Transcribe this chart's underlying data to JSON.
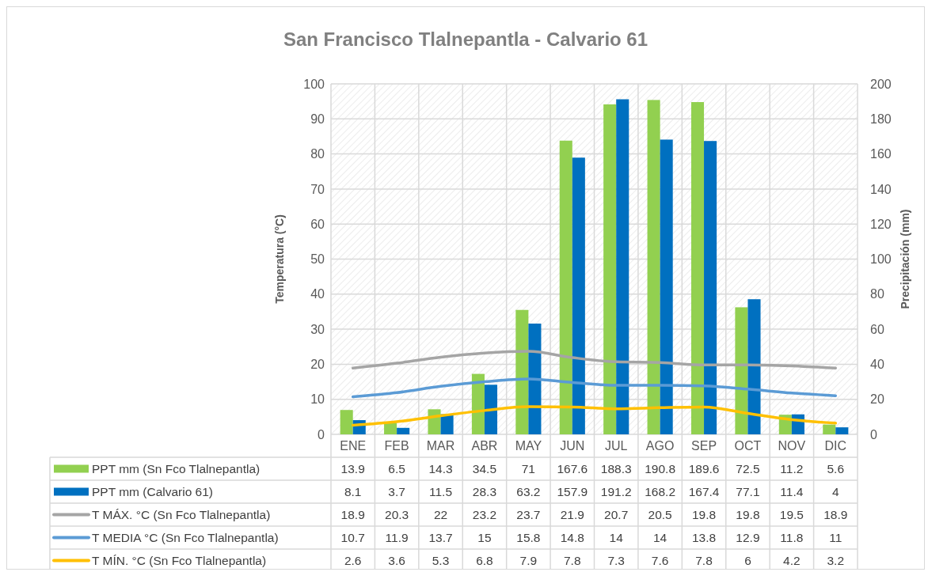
{
  "chart_data": {
    "type": "bar",
    "title": "San Francisco Tlalnepantla - Calvario 61",
    "ylabel": "Temperatura (°C)",
    "y2label": "Precipitación (mm)",
    "categories": [
      "ENE",
      "FEB",
      "MAR",
      "ABR",
      "MAY",
      "JUN",
      "JUL",
      "AGO",
      "SEP",
      "OCT",
      "NOV",
      "DIC"
    ],
    "series": [
      {
        "name": "PPT mm (Sn Fco Tlalnepantla)",
        "axis": "y2",
        "color": "#92d050",
        "values": [
          13.9,
          6.5,
          14.3,
          34.5,
          71,
          167.6,
          188.3,
          190.8,
          189.6,
          72.5,
          11.2,
          5.6
        ]
      },
      {
        "name": "PPT mm (Calvario 61)",
        "axis": "y2",
        "color": "#0070c0",
        "values": [
          8.1,
          3.7,
          11.5,
          28.3,
          63.2,
          157.9,
          191.2,
          168.2,
          167.4,
          77.1,
          11.4,
          4
        ]
      },
      {
        "name": "T MÁX. °C (Sn Fco Tlalnepantla)",
        "type": "line",
        "color": "#a5a5a5",
        "values": [
          18.9,
          20.3,
          22,
          23.2,
          23.7,
          21.9,
          20.7,
          20.5,
          19.8,
          19.8,
          19.5,
          18.9
        ]
      },
      {
        "name": "T MEDIA °C (Sn Fco Tlalnepantla)",
        "type": "line",
        "color": "#5b9bd5",
        "values": [
          10.7,
          11.9,
          13.7,
          15,
          15.8,
          14.8,
          14,
          14,
          13.8,
          12.9,
          11.8,
          11
        ]
      },
      {
        "name": "T MÍN. °C (Sn Fco Tlalnepantla)",
        "type": "line",
        "color": "#ffc000",
        "values": [
          2.6,
          3.6,
          5.3,
          6.8,
          7.9,
          7.8,
          7.3,
          7.6,
          7.8,
          6,
          4.2,
          3.2
        ]
      }
    ],
    "ylim": [
      0,
      100
    ],
    "yticks": [
      0,
      10,
      20,
      30,
      40,
      50,
      60,
      70,
      80,
      90,
      100
    ],
    "y2lim": [
      0,
      200
    ],
    "y2ticks": [
      0,
      20,
      40,
      60,
      80,
      100,
      120,
      140,
      160,
      180,
      200
    ],
    "grid": true,
    "legend": "bottom",
    "data_labels": true
  }
}
